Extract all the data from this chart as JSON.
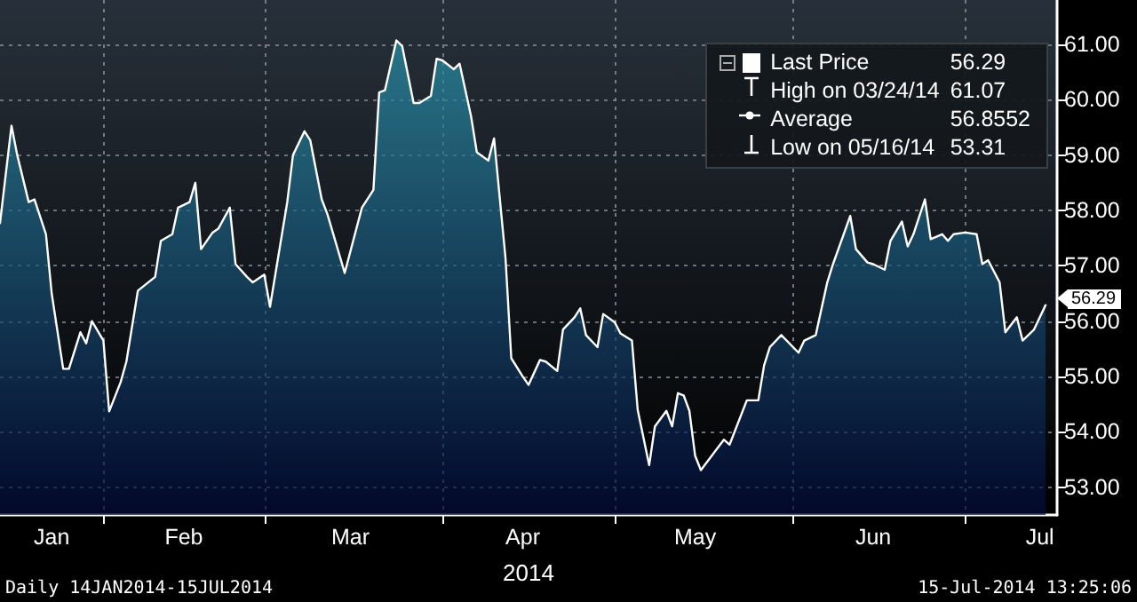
{
  "chart_data": {
    "type": "area",
    "xlabel": "2014",
    "x": [
      "2014-01-14",
      "2014-01-16",
      "2014-01-17",
      "2014-01-19",
      "2014-01-20",
      "2014-01-22",
      "2014-01-23",
      "2014-01-25",
      "2014-01-26",
      "2014-01-28",
      "2014-01-29",
      "2014-01-30",
      "2014-02-01",
      "2014-02-02",
      "2014-02-04",
      "2014-02-05",
      "2014-02-07",
      "2014-02-10",
      "2014-02-11",
      "2014-02-13",
      "2014-02-14",
      "2014-02-16",
      "2014-02-17",
      "2014-02-18",
      "2014-02-20",
      "2014-02-21",
      "2014-02-23",
      "2014-02-24",
      "2014-02-26",
      "2014-02-27",
      "2014-03-01",
      "2014-03-02",
      "2014-03-05",
      "2014-03-06",
      "2014-03-08",
      "2014-03-09",
      "2014-03-11",
      "2014-03-12",
      "2014-03-15",
      "2014-03-18",
      "2014-03-20",
      "2014-03-21",
      "2014-03-22",
      "2014-03-24",
      "2014-03-25",
      "2014-03-27",
      "2014-03-28",
      "2014-03-30",
      "2014-03-31",
      "2014-04-01",
      "2014-04-03",
      "2014-04-04",
      "2014-04-06",
      "2014-04-07",
      "2014-04-09",
      "2014-04-10",
      "2014-04-12",
      "2014-04-13",
      "2014-04-15",
      "2014-04-16",
      "2014-04-18",
      "2014-04-19",
      "2014-04-21",
      "2014-04-22",
      "2014-04-24",
      "2014-04-25",
      "2014-04-26",
      "2014-04-28",
      "2014-04-29",
      "2014-05-01",
      "2014-05-02",
      "2014-05-04",
      "2014-05-05",
      "2014-05-07",
      "2014-05-08",
      "2014-05-10",
      "2014-05-11",
      "2014-05-12",
      "2014-05-13",
      "2014-05-14",
      "2014-05-15",
      "2014-05-16",
      "2014-05-20",
      "2014-05-21",
      "2014-05-24",
      "2014-05-26",
      "2014-05-27",
      "2014-05-28",
      "2014-05-30",
      "2014-06-02",
      "2014-06-03",
      "2014-06-05",
      "2014-06-07",
      "2014-06-08",
      "2014-06-11",
      "2014-06-12",
      "2014-06-14",
      "2014-06-15",
      "2014-06-17",
      "2014-06-18",
      "2014-06-20",
      "2014-06-21",
      "2014-06-22",
      "2014-06-24",
      "2014-06-25",
      "2014-06-27",
      "2014-06-28",
      "2014-06-29",
      "2014-07-01",
      "2014-07-03",
      "2014-07-04",
      "2014-07-05",
      "2014-07-07",
      "2014-07-08",
      "2014-07-10",
      "2014-07-11",
      "2014-07-13",
      "2014-07-15"
    ],
    "series": [
      {
        "name": "Last Price",
        "color": "#ffffff",
        "values": [
          57.77,
          59.53,
          59.0,
          58.15,
          58.2,
          57.57,
          56.5,
          55.14,
          55.14,
          55.8,
          55.6,
          56.0,
          55.65,
          54.37,
          54.9,
          55.27,
          56.55,
          56.8,
          57.45,
          57.57,
          58.05,
          58.15,
          58.5,
          57.3,
          57.6,
          57.67,
          58.05,
          57.03,
          56.8,
          56.7,
          56.84,
          56.26,
          58.15,
          59.0,
          59.43,
          59.27,
          58.2,
          57.93,
          56.87,
          58.05,
          58.37,
          60.13,
          60.17,
          61.07,
          60.97,
          59.94,
          59.94,
          60.07,
          60.74,
          60.71,
          60.55,
          60.65,
          59.7,
          59.05,
          58.9,
          59.3,
          57.13,
          55.33,
          55.0,
          54.85,
          55.3,
          55.27,
          55.1,
          55.85,
          56.07,
          56.23,
          55.75,
          55.53,
          56.13,
          55.98,
          55.78,
          55.65,
          54.4,
          53.4,
          54.1,
          54.38,
          54.1,
          54.7,
          54.66,
          54.38,
          53.57,
          53.31,
          53.86,
          53.77,
          54.57,
          54.57,
          55.2,
          55.53,
          55.75,
          55.43,
          55.65,
          55.75,
          56.7,
          57.03,
          57.9,
          57.3,
          57.06,
          57.03,
          56.93,
          57.45,
          57.8,
          57.35,
          57.57,
          58.2,
          57.48,
          57.57,
          57.45,
          57.57,
          57.6,
          57.57,
          57.03,
          57.1,
          56.7,
          55.8,
          56.07,
          55.65,
          55.85,
          56.29
        ]
      }
    ],
    "xlim": [
      "2014-01-14",
      "2014-07-17"
    ],
    "xticks": [
      {
        "value": "2014-01-23",
        "label": "Jan"
      },
      {
        "value": "2014-02-01",
        "label": null
      },
      {
        "value": "2014-02-15",
        "label": "Feb"
      },
      {
        "value": "2014-03-01",
        "label": null
      },
      {
        "value": "2014-03-16",
        "label": "Mar"
      },
      {
        "value": "2014-04-01",
        "label": null
      },
      {
        "value": "2014-04-15",
        "label": "Apr"
      },
      {
        "value": "2014-05-01",
        "label": null
      },
      {
        "value": "2014-05-15",
        "label": "May"
      },
      {
        "value": "2014-06-01",
        "label": null
      },
      {
        "value": "2014-06-15",
        "label": "Jun"
      },
      {
        "value": "2014-07-01",
        "label": null
      },
      {
        "value": "2014-07-14",
        "label": "Jul"
      }
    ],
    "ylim": [
      52.5,
      61.8
    ],
    "yticks": [
      {
        "value": 53,
        "label": "53.00"
      },
      {
        "value": 54,
        "label": "54.00"
      },
      {
        "value": 55,
        "label": "55.00"
      },
      {
        "value": 56,
        "label": "56.00"
      },
      {
        "value": 57,
        "label": "57.00"
      },
      {
        "value": 58,
        "label": "58.00"
      },
      {
        "value": 59,
        "label": "59.00"
      },
      {
        "value": 60,
        "label": "60.00"
      },
      {
        "value": 61,
        "label": "61.00"
      }
    ],
    "grid": true,
    "legend": "top right",
    "marker": "none",
    "line_style": "solid",
    "annotations": [
      {
        "text": "56.29",
        "x": "2014-07-15",
        "y": 56.29
      },
      "High on 03/24/14 61.07",
      "Average 56.8552",
      "Low on 05/16/14 53.31",
      "Daily 14JAN2014-15JUL2014",
      "15-Jul-2014 13:25:06"
    ]
  }
}
